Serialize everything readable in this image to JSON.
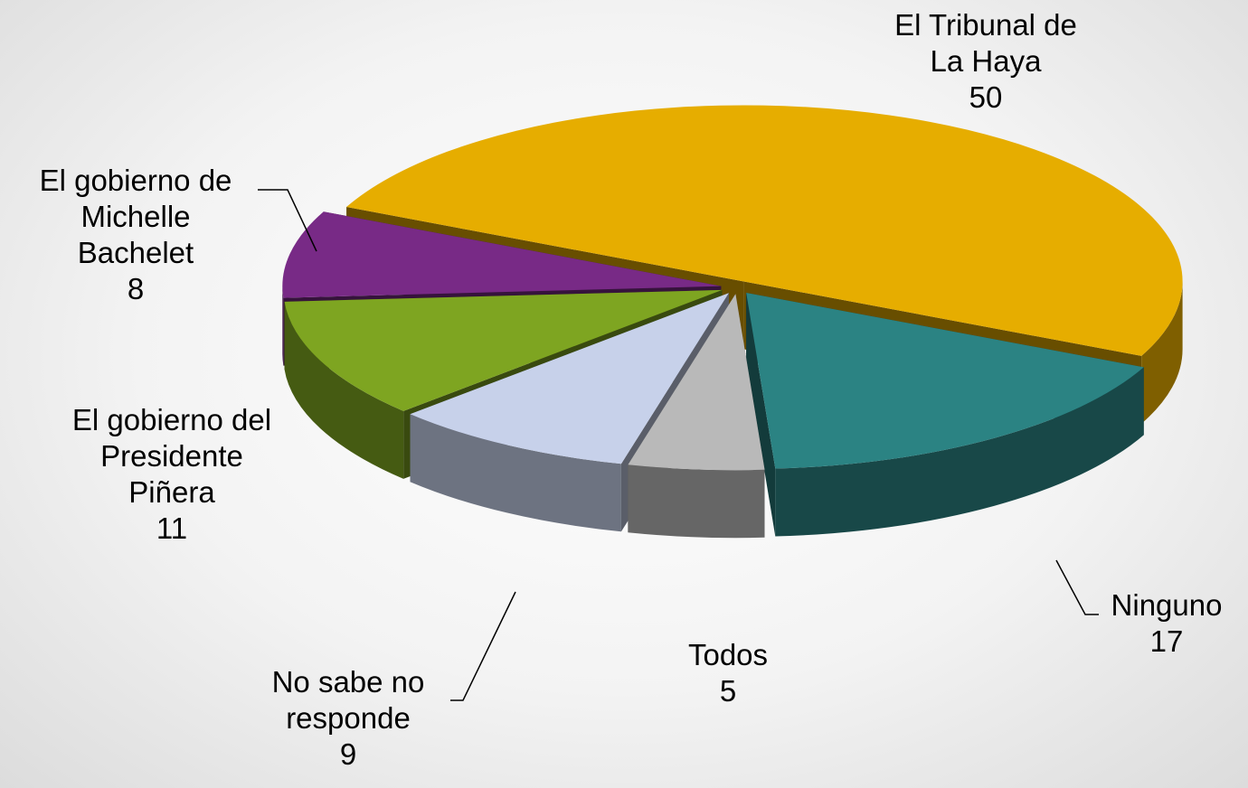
{
  "chart_data": {
    "type": "pie",
    "categories": [
      "El Tribunal de\nLa Haya",
      "Ninguno",
      "Todos",
      "No sabe no\nresponde",
      "El gobierno del\nPresidente\nPiñera",
      "El gobierno de\nMichelle\nBachelet"
    ],
    "values": [
      50,
      17,
      5,
      9,
      11,
      8
    ],
    "colors": [
      "#e6ad00",
      "#2b8383",
      "#b9b9b9",
      "#c7d1ea",
      "#7ea521",
      "#782a86"
    ]
  }
}
